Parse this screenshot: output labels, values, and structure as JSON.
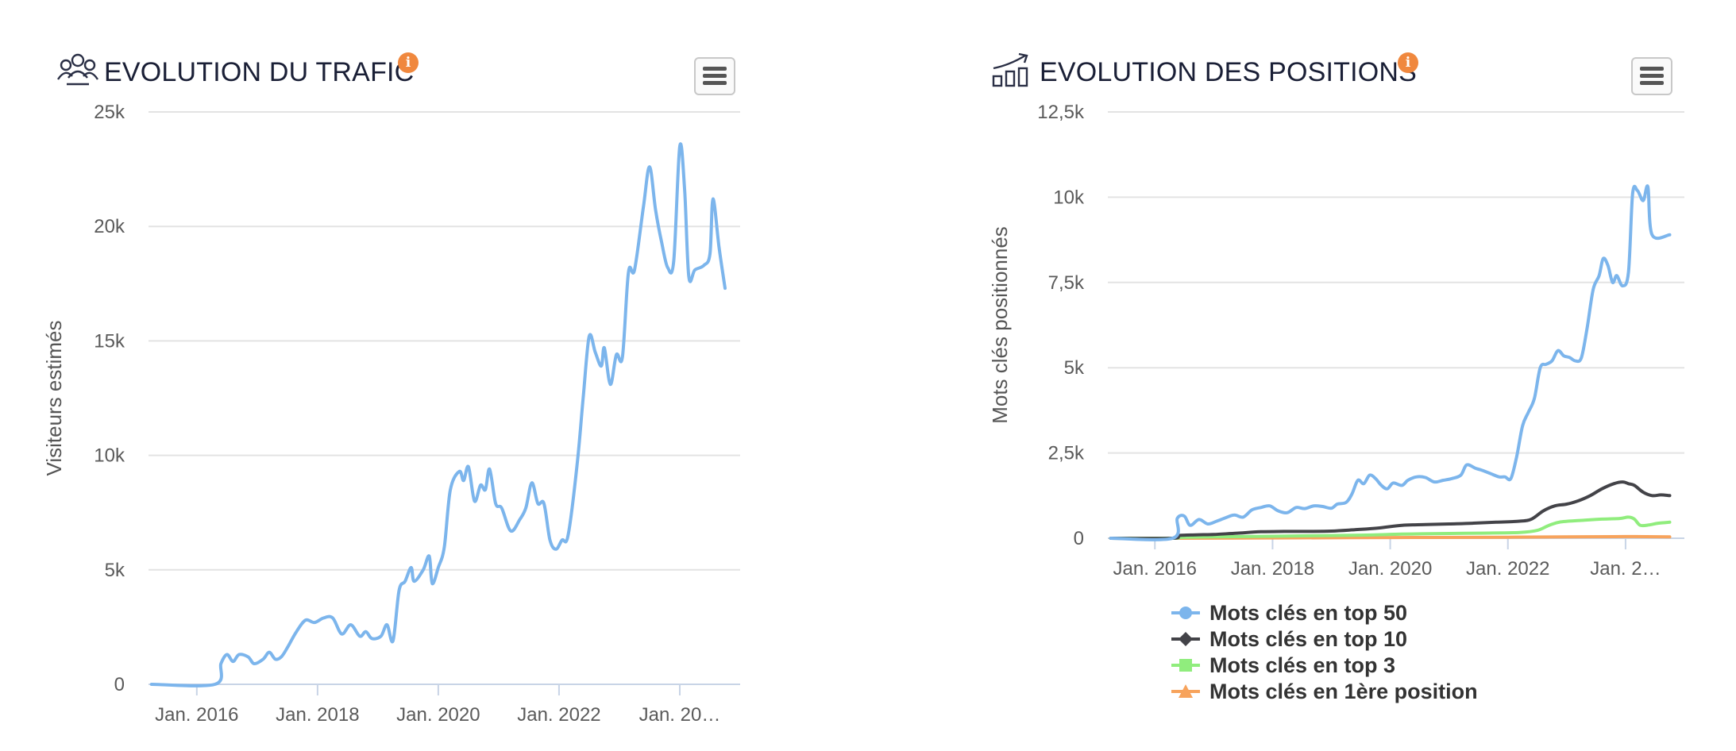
{
  "chart_data": [
    {
      "type": "line",
      "title": "EVOLUTION DU TRAFIC",
      "ylabel": "Visiteurs estimés",
      "xlim": [
        2015.2,
        2025.0
      ],
      "ylim": [
        0,
        25000
      ],
      "y_ticks": [
        {
          "value": 0,
          "label": "0"
        },
        {
          "value": 5000,
          "label": "5k"
        },
        {
          "value": 10000,
          "label": "10k"
        },
        {
          "value": 15000,
          "label": "15k"
        },
        {
          "value": 20000,
          "label": "20k"
        },
        {
          "value": 25000,
          "label": "25k"
        }
      ],
      "x_ticks": [
        {
          "value": 2016,
          "label": "Jan. 2016"
        },
        {
          "value": 2018,
          "label": "Jan. 2018"
        },
        {
          "value": 2020,
          "label": "Jan. 2020"
        },
        {
          "value": 2022,
          "label": "Jan. 2022"
        },
        {
          "value": 2024,
          "label": "Jan. 20…"
        }
      ],
      "grid": true,
      "series": [
        {
          "color": "#7cb5ec",
          "points": [
            [
              2015.25,
              0
            ],
            [
              2016.3,
              0
            ],
            [
              2016.4,
              900
            ],
            [
              2016.5,
              1300
            ],
            [
              2016.6,
              1000
            ],
            [
              2016.7,
              1300
            ],
            [
              2016.85,
              1200
            ],
            [
              2016.95,
              900
            ],
            [
              2017.1,
              1100
            ],
            [
              2017.2,
              1400
            ],
            [
              2017.3,
              1100
            ],
            [
              2017.4,
              1200
            ],
            [
              2017.5,
              1600
            ],
            [
              2017.65,
              2300
            ],
            [
              2017.8,
              2800
            ],
            [
              2017.95,
              2700
            ],
            [
              2018.1,
              2900
            ],
            [
              2018.25,
              2900
            ],
            [
              2018.4,
              2200
            ],
            [
              2018.55,
              2600
            ],
            [
              2018.7,
              2100
            ],
            [
              2018.8,
              2300
            ],
            [
              2018.9,
              2000
            ],
            [
              2019.05,
              2100
            ],
            [
              2019.15,
              2600
            ],
            [
              2019.25,
              1900
            ],
            [
              2019.35,
              4100
            ],
            [
              2019.45,
              4500
            ],
            [
              2019.55,
              5100
            ],
            [
              2019.6,
              4500
            ],
            [
              2019.75,
              5000
            ],
            [
              2019.85,
              5600
            ],
            [
              2019.9,
              4400
            ],
            [
              2020.0,
              5100
            ],
            [
              2020.1,
              6000
            ],
            [
              2020.2,
              8500
            ],
            [
              2020.35,
              9300
            ],
            [
              2020.42,
              8900
            ],
            [
              2020.5,
              9500
            ],
            [
              2020.6,
              8000
            ],
            [
              2020.7,
              8700
            ],
            [
              2020.78,
              8500
            ],
            [
              2020.85,
              9400
            ],
            [
              2020.95,
              7900
            ],
            [
              2021.05,
              7700
            ],
            [
              2021.2,
              6700
            ],
            [
              2021.35,
              7200
            ],
            [
              2021.45,
              7700
            ],
            [
              2021.55,
              8800
            ],
            [
              2021.65,
              7900
            ],
            [
              2021.75,
              7900
            ],
            [
              2021.85,
              6300
            ],
            [
              2021.95,
              5900
            ],
            [
              2022.05,
              6300
            ],
            [
              2022.15,
              6500
            ],
            [
              2022.3,
              9600
            ],
            [
              2022.4,
              12500
            ],
            [
              2022.5,
              15200
            ],
            [
              2022.6,
              14500
            ],
            [
              2022.7,
              13900
            ],
            [
              2022.75,
              14700
            ],
            [
              2022.85,
              13100
            ],
            [
              2022.95,
              14400
            ],
            [
              2023.05,
              14300
            ],
            [
              2023.15,
              18000
            ],
            [
              2023.25,
              18100
            ],
            [
              2023.4,
              20900
            ],
            [
              2023.5,
              22600
            ],
            [
              2023.6,
              20700
            ],
            [
              2023.7,
              19300
            ],
            [
              2023.8,
              18200
            ],
            [
              2023.9,
              18500
            ],
            [
              2024.0,
              23500
            ],
            [
              2024.08,
              21600
            ],
            [
              2024.15,
              17800
            ],
            [
              2024.25,
              18100
            ],
            [
              2024.4,
              18300
            ],
            [
              2024.5,
              18800
            ],
            [
              2024.55,
              21200
            ],
            [
              2024.65,
              19100
            ],
            [
              2024.75,
              17300
            ]
          ]
        }
      ]
    },
    {
      "type": "line",
      "title": "EVOLUTION DES POSITIONS",
      "ylabel": "Mots clés positionnés",
      "xlim": [
        2015.2,
        2025.0
      ],
      "ylim": [
        0,
        12500
      ],
      "y_ticks": [
        {
          "value": 0,
          "label": "0"
        },
        {
          "value": 2500,
          "label": "2,5k"
        },
        {
          "value": 5000,
          "label": "5k"
        },
        {
          "value": 7500,
          "label": "7,5k"
        },
        {
          "value": 10000,
          "label": "10k"
        },
        {
          "value": 12500,
          "label": "12,5k"
        }
      ],
      "x_ticks": [
        {
          "value": 2016,
          "label": "Jan. 2016"
        },
        {
          "value": 2018,
          "label": "Jan. 2018"
        },
        {
          "value": 2020,
          "label": "Jan. 2020"
        },
        {
          "value": 2022,
          "label": "Jan. 2022"
        },
        {
          "value": 2024,
          "label": "Jan. 2…"
        }
      ],
      "grid": true,
      "legend_position": "bottom",
      "series": [
        {
          "name": "Mots clés en 1ère position",
          "color": "#f7a35c",
          "marker": "triangle",
          "points": [
            [
              2015.25,
              0
            ],
            [
              2016.3,
              0
            ],
            [
              2018.0,
              10
            ],
            [
              2020.0,
              20
            ],
            [
              2022.0,
              30
            ],
            [
              2023.0,
              40
            ],
            [
              2024.0,
              50
            ],
            [
              2024.75,
              40
            ]
          ]
        },
        {
          "name": "Mots clés en top 3",
          "color": "#90ed7d",
          "marker": "square",
          "points": [
            [
              2015.25,
              0
            ],
            [
              2016.3,
              0
            ],
            [
              2016.5,
              30
            ],
            [
              2017.5,
              50
            ],
            [
              2018.5,
              70
            ],
            [
              2019.5,
              90
            ],
            [
              2020.2,
              120
            ],
            [
              2021.0,
              140
            ],
            [
              2021.5,
              150
            ],
            [
              2022.2,
              170
            ],
            [
              2022.5,
              230
            ],
            [
              2022.7,
              380
            ],
            [
              2022.9,
              480
            ],
            [
              2023.3,
              530
            ],
            [
              2023.6,
              560
            ],
            [
              2023.9,
              580
            ],
            [
              2024.05,
              620
            ],
            [
              2024.15,
              560
            ],
            [
              2024.25,
              380
            ],
            [
              2024.4,
              390
            ],
            [
              2024.55,
              440
            ],
            [
              2024.75,
              470
            ]
          ]
        },
        {
          "name": "Mots clés en top 10",
          "color": "#434348",
          "marker": "diamond",
          "points": [
            [
              2015.25,
              0
            ],
            [
              2016.3,
              0
            ],
            [
              2016.4,
              80
            ],
            [
              2016.7,
              100
            ],
            [
              2017.0,
              110
            ],
            [
              2017.4,
              150
            ],
            [
              2017.8,
              190
            ],
            [
              2018.2,
              200
            ],
            [
              2018.6,
              200
            ],
            [
              2019.0,
              210
            ],
            [
              2019.4,
              250
            ],
            [
              2019.8,
              300
            ],
            [
              2020.2,
              380
            ],
            [
              2020.6,
              400
            ],
            [
              2021.0,
              420
            ],
            [
              2021.4,
              440
            ],
            [
              2021.8,
              470
            ],
            [
              2022.2,
              500
            ],
            [
              2022.4,
              560
            ],
            [
              2022.6,
              800
            ],
            [
              2022.8,
              950
            ],
            [
              2023.0,
              1000
            ],
            [
              2023.2,
              1100
            ],
            [
              2023.4,
              1250
            ],
            [
              2023.6,
              1450
            ],
            [
              2023.8,
              1600
            ],
            [
              2023.95,
              1650
            ],
            [
              2024.05,
              1600
            ],
            [
              2024.15,
              1550
            ],
            [
              2024.3,
              1350
            ],
            [
              2024.45,
              1250
            ],
            [
              2024.6,
              1270
            ],
            [
              2024.75,
              1250
            ]
          ]
        },
        {
          "name": "Mots clés en top 50",
          "color": "#7cb5ec",
          "marker": "circle",
          "points": [
            [
              2015.25,
              0
            ],
            [
              2016.3,
              0
            ],
            [
              2016.38,
              580
            ],
            [
              2016.5,
              650
            ],
            [
              2016.6,
              380
            ],
            [
              2016.75,
              550
            ],
            [
              2016.9,
              420
            ],
            [
              2017.05,
              500
            ],
            [
              2017.2,
              600
            ],
            [
              2017.35,
              680
            ],
            [
              2017.5,
              620
            ],
            [
              2017.65,
              830
            ],
            [
              2017.8,
              900
            ],
            [
              2017.95,
              950
            ],
            [
              2018.1,
              800
            ],
            [
              2018.25,
              750
            ],
            [
              2018.4,
              900
            ],
            [
              2018.55,
              870
            ],
            [
              2018.7,
              950
            ],
            [
              2018.85,
              930
            ],
            [
              2019.0,
              880
            ],
            [
              2019.1,
              1000
            ],
            [
              2019.25,
              1050
            ],
            [
              2019.35,
              1300
            ],
            [
              2019.45,
              1700
            ],
            [
              2019.55,
              1600
            ],
            [
              2019.65,
              1850
            ],
            [
              2019.75,
              1750
            ],
            [
              2019.85,
              1550
            ],
            [
              2019.95,
              1450
            ],
            [
              2020.05,
              1620
            ],
            [
              2020.2,
              1550
            ],
            [
              2020.3,
              1700
            ],
            [
              2020.45,
              1800
            ],
            [
              2020.6,
              1780
            ],
            [
              2020.75,
              1650
            ],
            [
              2020.9,
              1700
            ],
            [
              2021.05,
              1750
            ],
            [
              2021.2,
              1850
            ],
            [
              2021.3,
              2150
            ],
            [
              2021.45,
              2050
            ],
            [
              2021.55,
              2000
            ],
            [
              2021.7,
              1900
            ],
            [
              2021.85,
              1800
            ],
            [
              2021.95,
              1800
            ],
            [
              2022.05,
              1750
            ],
            [
              2022.15,
              2400
            ],
            [
              2022.25,
              3300
            ],
            [
              2022.35,
              3700
            ],
            [
              2022.45,
              4100
            ],
            [
              2022.55,
              5000
            ],
            [
              2022.65,
              5100
            ],
            [
              2022.75,
              5200
            ],
            [
              2022.85,
              5500
            ],
            [
              2022.95,
              5350
            ],
            [
              2023.05,
              5300
            ],
            [
              2023.15,
              5200
            ],
            [
              2023.25,
              5300
            ],
            [
              2023.35,
              6200
            ],
            [
              2023.45,
              7300
            ],
            [
              2023.55,
              7700
            ],
            [
              2023.62,
              8200
            ],
            [
              2023.7,
              8000
            ],
            [
              2023.78,
              7500
            ],
            [
              2023.85,
              7700
            ],
            [
              2023.95,
              7400
            ],
            [
              2024.05,
              7800
            ],
            [
              2024.12,
              10100
            ],
            [
              2024.2,
              10200
            ],
            [
              2024.3,
              9900
            ],
            [
              2024.38,
              10300
            ],
            [
              2024.45,
              8900
            ],
            [
              2024.75,
              8900
            ]
          ]
        }
      ]
    }
  ]
}
